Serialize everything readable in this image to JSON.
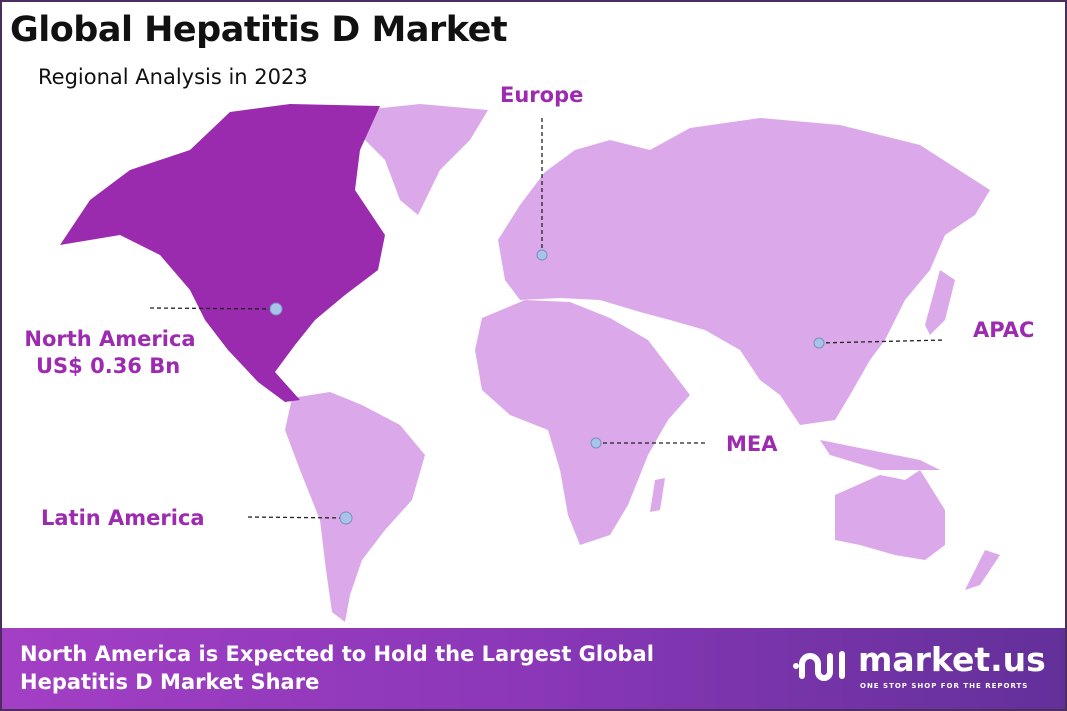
{
  "header": {
    "title": "Global Hepatitis D Market",
    "subtitle": "Regional Analysis in 2023"
  },
  "colors": {
    "highlight_region": "#9a2aae",
    "other_regions": "#dba8ea",
    "label": "#9c2bb0",
    "marker": "#a9c4ea",
    "banner_start": "#a33fc4",
    "banner_end": "#63309a"
  },
  "regions": [
    {
      "name": "North America",
      "value": "US$ 0.36 Bn",
      "highlighted": true
    },
    {
      "name": "Europe"
    },
    {
      "name": "APAC"
    },
    {
      "name": "MEA"
    },
    {
      "name": "Latin America"
    }
  ],
  "banner": {
    "line1": "North America is Expected to Hold the Largest Global",
    "line2": "Hepatitis D Market Share"
  },
  "logo": {
    "name": "market.us",
    "tagline": "ONE STOP SHOP FOR THE REPORTS"
  }
}
